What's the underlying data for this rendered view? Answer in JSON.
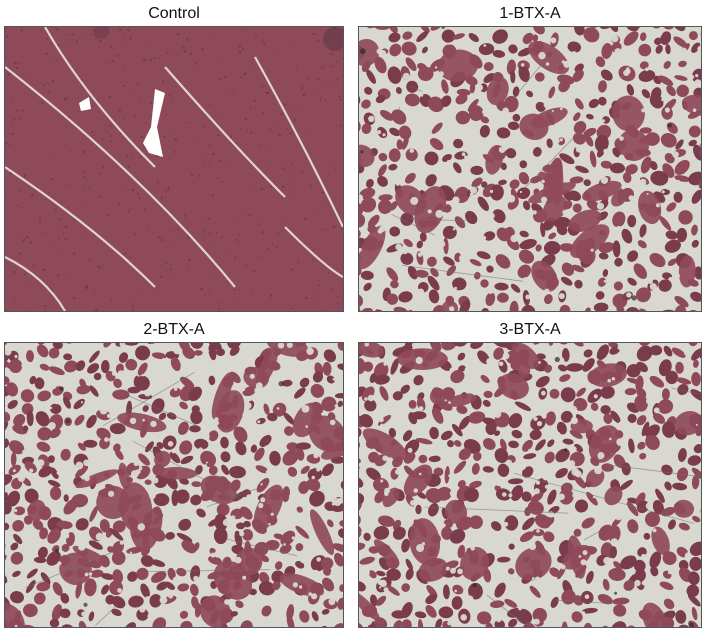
{
  "panels": [
    {
      "label": "Control",
      "variant": "control"
    },
    {
      "label": "1-BTX-A",
      "variant": "atrophy"
    },
    {
      "label": "2-BTX-A",
      "variant": "atrophy"
    },
    {
      "label": "3-BTX-A",
      "variant": "atrophy"
    }
  ],
  "colors": {
    "tissue": "#8f4a5a",
    "tissue_dark": "#7a3b4c",
    "gap": "#d9d8d0",
    "line": "#c9c6c0",
    "background": "#ffffff"
  }
}
